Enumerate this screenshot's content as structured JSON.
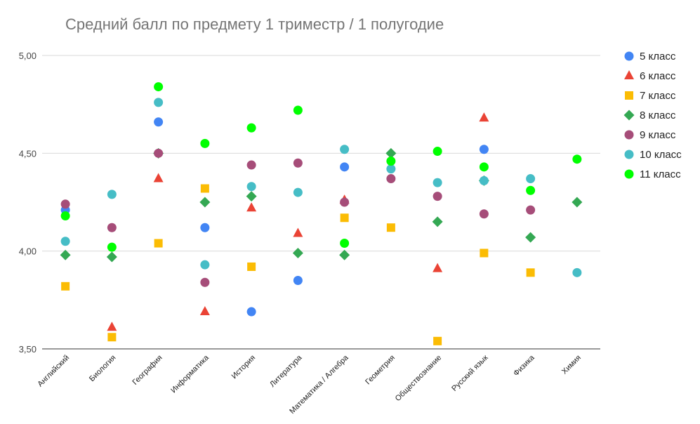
{
  "chart_data": {
    "type": "scatter",
    "title": "Средний балл по предмету 1 триместр / 1 полугодие",
    "xlabel": "",
    "ylabel": "",
    "ylim": [
      3.5,
      5.0
    ],
    "yticks": [
      "3,50",
      "4,00",
      "4,50",
      "5,00"
    ],
    "grid": true,
    "legend_position": "right",
    "categories": [
      "Английский",
      "Биология",
      "География",
      "Информатика",
      "История",
      "Литература",
      "Математика / Алгебра",
      "Геометрия",
      "Обществознание",
      "Русский язык",
      "Физика",
      "Химия"
    ],
    "series": [
      {
        "name": "5 класс",
        "marker": "circle",
        "color": "#4285f4",
        "values": [
          4.21,
          null,
          4.66,
          4.12,
          3.69,
          3.85,
          4.43,
          null,
          null,
          4.52,
          null,
          null
        ]
      },
      {
        "name": "6 класс",
        "marker": "triangle",
        "color": "#ea4335",
        "values": [
          null,
          3.61,
          4.37,
          3.69,
          4.22,
          4.09,
          4.26,
          null,
          3.91,
          4.68,
          null,
          null
        ]
      },
      {
        "name": "7 класс",
        "marker": "square",
        "color": "#fbbc04",
        "values": [
          3.82,
          3.56,
          4.04,
          4.32,
          3.92,
          null,
          4.17,
          4.12,
          3.54,
          3.99,
          3.89,
          null
        ]
      },
      {
        "name": "8 класс",
        "marker": "diamond",
        "color": "#34a853",
        "values": [
          3.98,
          3.97,
          4.5,
          4.25,
          4.28,
          3.99,
          3.98,
          4.5,
          4.15,
          4.36,
          4.07,
          4.25
        ]
      },
      {
        "name": "9 класс",
        "marker": "circle",
        "color": "#a64d79",
        "values": [
          4.24,
          4.12,
          4.5,
          3.84,
          4.44,
          4.45,
          4.25,
          4.37,
          4.28,
          4.19,
          4.21,
          null
        ]
      },
      {
        "name": "10 класс",
        "marker": "circle",
        "color": "#46bdc6",
        "values": [
          4.05,
          4.29,
          4.76,
          3.93,
          4.33,
          4.3,
          4.52,
          4.42,
          4.35,
          4.36,
          4.37,
          3.89
        ]
      },
      {
        "name": "11 класс",
        "marker": "circle",
        "color": "#00ff00",
        "values": [
          4.18,
          4.02,
          4.84,
          4.55,
          4.63,
          4.72,
          4.04,
          4.46,
          4.51,
          4.43,
          4.31,
          4.47
        ]
      }
    ]
  }
}
